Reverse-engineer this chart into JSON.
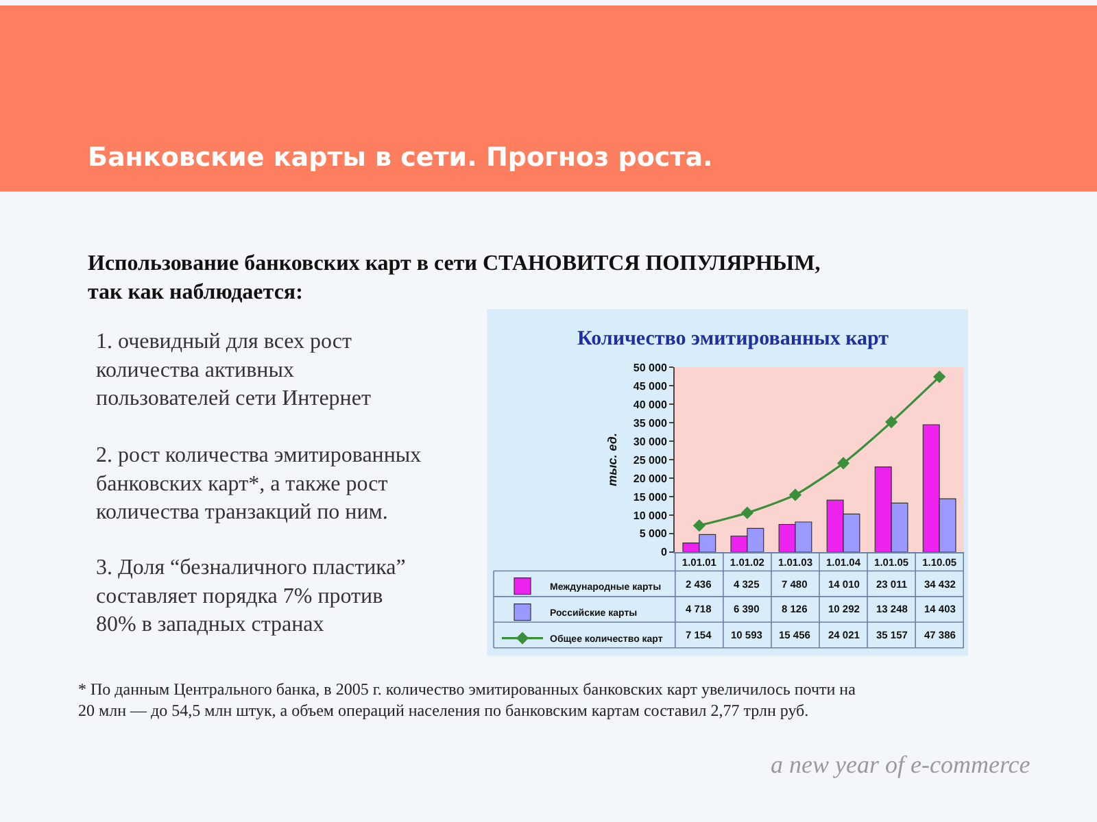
{
  "chart_data": {
    "type": "bar",
    "title": "Количество эмитированных карт",
    "ylabel": "тыс. ед.",
    "categories": [
      "1.01.01",
      "1.01.02",
      "1.01.03",
      "1.01.04",
      "1.01.05",
      "1.10.05"
    ],
    "series": [
      {
        "name": "Международные карты",
        "color": "#ee22ee",
        "values": [
          2436,
          4325,
          7480,
          14010,
          23011,
          34432
        ],
        "value_labels": [
          "2 436",
          "4 325",
          "7 480",
          "14 010",
          "23 011",
          "34 432"
        ]
      },
      {
        "name": "Российские карты",
        "color": "#9999ff",
        "values": [
          4718,
          6390,
          8126,
          10292,
          13248,
          14403
        ],
        "value_labels": [
          "4 718",
          "6 390",
          "8 126",
          "10 292",
          "13 248",
          "14 403"
        ]
      },
      {
        "name": "Общее количество карт",
        "type": "line",
        "color": "#3a8f3a",
        "marker": "diamond",
        "values": [
          7154,
          10593,
          15456,
          24021,
          35157,
          47386
        ],
        "value_labels": [
          "7 154",
          "10 593",
          "15 456",
          "24 021",
          "35 157",
          "47 386"
        ]
      }
    ],
    "ylim": [
      0,
      50000
    ],
    "yticks": [
      0,
      {
        "value": 5000,
        "label": "5 000"
      },
      {
        "value": 10000,
        "label": "10 000"
      },
      {
        "value": 15000,
        "label": "15 000"
      },
      {
        "value": 20000,
        "label": "20 000"
      },
      {
        "value": 25000,
        "label": "25 000"
      },
      {
        "value": 30000,
        "label": "30 000"
      },
      {
        "value": 35000,
        "label": "35 000"
      },
      {
        "value": 40000,
        "label": "40 000"
      },
      {
        "value": 45000,
        "label": "45 000"
      },
      {
        "value": 50000,
        "label": "50 000"
      }
    ],
    "legend": "bottom left",
    "annotations": [
      "Банковские карты в сети. Прогноз роста.",
      "Использование банковских карт в сети СТАНОВИТСЯ ПОПУЛЯРНЫМ,\nтак как наблюдается:",
      "1. очевидный для всех рост\nколичества активных\nпользователей сети Интернет",
      "2. рост количества эмитированных\nбанковских карт*, а также рост\nколичества транзакций по ним.",
      "3. Доля “безналичного пластика”\nсоставляет порядка 7% против\n80% в западных странах",
      "* По данным Центрального банка, в 2005 г. количество эмитированных банковских карт увеличилось почти на\n20 млн — до 54,5 млн штук, а объем операций населения по банковским картам составил 2,77 трлн руб.",
      "a new year of e-commerce"
    ]
  }
}
